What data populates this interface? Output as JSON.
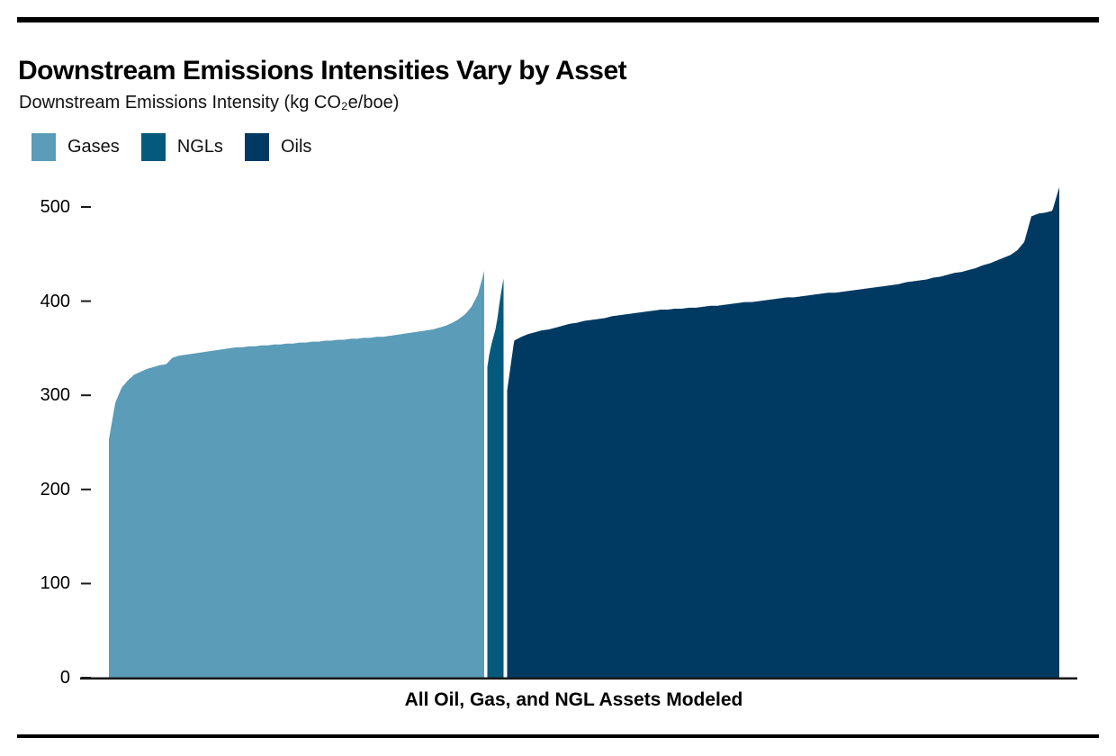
{
  "page": {
    "title": "Downstream Emissions Intensities Vary by Asset",
    "subtitle": "Downstream Emissions Intensity (kg CO₂e/boe)",
    "x_axis_label": "All Oil, Gas, and NGL Assets Modeled"
  },
  "colors": {
    "rule": "#000000",
    "axis": "#1a1a1a",
    "gases": "#5B9CB9",
    "ngls": "#045A7D",
    "oils": "#003A62"
  },
  "chart_data": {
    "type": "bar",
    "title": "Downstream Emissions Intensities Vary by Asset",
    "ylabel": "Downstream Emissions Intensity (kg CO₂e/boe)",
    "xlabel": "All Oil, Gas, and NGL Assets Modeled",
    "ylim": [
      0,
      530
    ],
    "yticks": [
      0,
      100,
      200,
      300,
      400,
      500
    ],
    "grid": false,
    "legend_position": "top-left",
    "note": "Each thin bar is one modeled asset; assets sorted by intensity within each fuel group (Gases, NGLs, Oils), separated by small gaps.",
    "series": [
      {
        "name": "Gases",
        "color": "#5B9CB9",
        "values": [
          253,
          292,
          308,
          316,
          322,
          325,
          328,
          330,
          332,
          333,
          340,
          342,
          343,
          344,
          345,
          346,
          347,
          348,
          349,
          350,
          351,
          351,
          352,
          352,
          353,
          353,
          354,
          354,
          355,
          355,
          356,
          356,
          357,
          357,
          358,
          358,
          359,
          359,
          360,
          360,
          361,
          361,
          362,
          362,
          363,
          364,
          365,
          366,
          367,
          368,
          369,
          370,
          372,
          374,
          377,
          381,
          386,
          394,
          407,
          432
        ]
      },
      {
        "name": "NGLs",
        "color": "#045A7D",
        "values": [
          330,
          344,
          354,
          362,
          370,
          382,
          398,
          412,
          424
        ]
      },
      {
        "name": "Oils",
        "color": "#003A62",
        "values": [
          305,
          358,
          362,
          365,
          367,
          369,
          370,
          372,
          374,
          376,
          377,
          379,
          380,
          381,
          382,
          384,
          385,
          386,
          387,
          388,
          389,
          390,
          391,
          391,
          392,
          392,
          393,
          393,
          394,
          395,
          395,
          396,
          397,
          398,
          399,
          399,
          400,
          401,
          402,
          403,
          404,
          404,
          405,
          406,
          407,
          408,
          409,
          409,
          410,
          411,
          412,
          413,
          414,
          415,
          416,
          417,
          418,
          420,
          421,
          422,
          423,
          425,
          426,
          428,
          430,
          431,
          433,
          435,
          438,
          440,
          443,
          446,
          449,
          454,
          463,
          490,
          493,
          494,
          496,
          521
        ]
      }
    ]
  }
}
